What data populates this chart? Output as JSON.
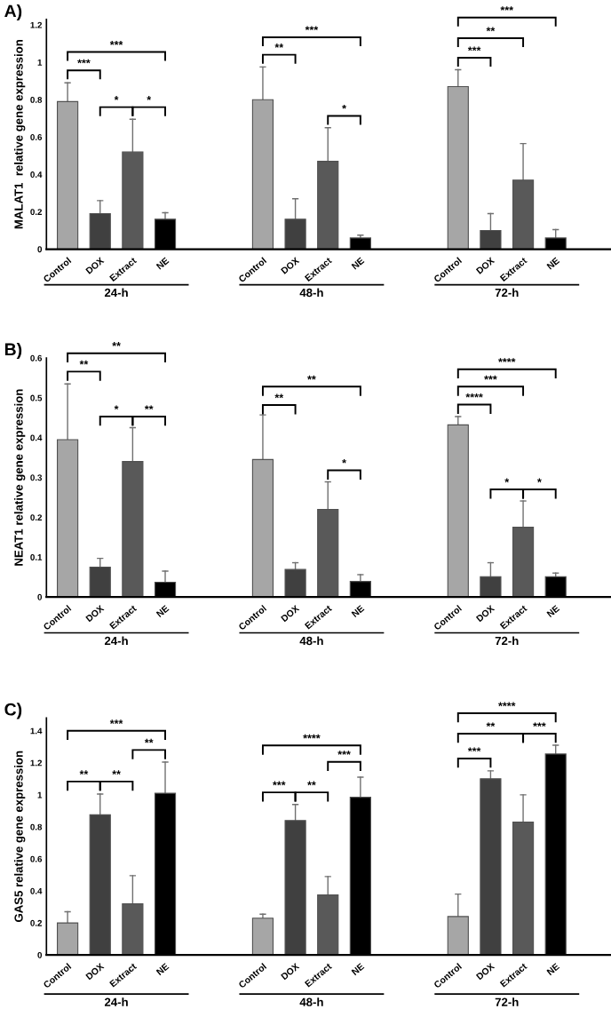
{
  "chart_data": [
    {
      "type": "bar",
      "title": "A)",
      "ylabel": "MALAT1  relative gene expression",
      "categories": [
        "Control",
        "DOX",
        "Extract",
        "NE",
        null,
        null,
        "Control",
        "DOX",
        "Extract",
        "NE",
        null,
        null,
        "Control",
        "DOX",
        "Extract",
        "NE"
      ],
      "values": [
        0.79,
        0.19,
        0.52,
        0.16,
        null,
        null,
        0.8,
        0.16,
        0.47,
        0.06,
        null,
        null,
        0.87,
        0.1,
        0.37,
        0.06
      ],
      "errors": [
        [
          0.79,
          0.89
        ],
        [
          0.19,
          0.26
        ],
        [
          0.52,
          0.695
        ],
        [
          0.16,
          0.195
        ],
        null,
        null,
        [
          0.8,
          0.975
        ],
        [
          0.16,
          0.27
        ],
        [
          0.47,
          0.65
        ],
        [
          0.06,
          0.075
        ],
        null,
        null,
        [
          0.87,
          0.96
        ],
        [
          0.1,
          0.19
        ],
        [
          0.37,
          0.565
        ],
        [
          0.06,
          0.105
        ]
      ],
      "colors": [
        "#a6a6a6",
        "#404040",
        "#595959",
        "#000000",
        null,
        null,
        "#a6a6a6",
        "#404040",
        "#595959",
        "#000000",
        null,
        null,
        "#a6a6a6",
        "#404040",
        "#595959",
        "#000000"
      ],
      "ylim": [
        0,
        1.23
      ],
      "yticks": [
        0,
        0.2,
        0.4,
        0.6,
        0.8,
        1,
        1.2
      ],
      "grid": false,
      "legend": false,
      "annotations": [
        "***",
        "***",
        "*",
        "*",
        "***",
        "**",
        "*",
        "***",
        "**",
        "***",
        "24-h",
        "48-h",
        "72-h"
      ]
    },
    {
      "type": "bar",
      "title": "B)",
      "ylabel": "NEAT1 relative gene expression",
      "categories": [
        "Control",
        "DOX",
        "Extract",
        "NE",
        null,
        null,
        "Control",
        "DOX",
        "Extract",
        "NE",
        null,
        null,
        "Control",
        "DOX",
        "Extract",
        "NE"
      ],
      "values": [
        0.395,
        0.075,
        0.34,
        0.037,
        null,
        null,
        0.345,
        0.069,
        0.22,
        0.039,
        null,
        null,
        0.432,
        0.051,
        0.175,
        0.051
      ],
      "errors": [
        [
          0.395,
          0.535
        ],
        [
          0.075,
          0.097
        ],
        [
          0.34,
          0.425
        ],
        [
          0.037,
          0.065
        ],
        null,
        null,
        [
          0.345,
          0.457
        ],
        [
          0.069,
          0.086
        ],
        [
          0.22,
          0.289
        ],
        [
          0.039,
          0.056
        ],
        null,
        null,
        [
          0.432,
          0.453
        ],
        [
          0.051,
          0.086
        ],
        [
          0.175,
          0.241
        ],
        [
          0.051,
          0.06
        ]
      ],
      "colors": [
        "#a6a6a6",
        "#404040",
        "#595959",
        "#000000",
        null,
        null,
        "#a6a6a6",
        "#404040",
        "#595959",
        "#000000",
        null,
        null,
        "#a6a6a6",
        "#404040",
        "#595959",
        "#000000"
      ],
      "ylim": [
        0,
        0.6
      ],
      "yticks": [
        0,
        0.1,
        0.2,
        0.3,
        0.4,
        0.5,
        0.6
      ],
      "grid": false,
      "legend": false,
      "annotations": [
        "**",
        "**",
        "*",
        "**",
        "**",
        "**",
        "*",
        "****",
        "***",
        "****",
        "*",
        "*",
        "24-h",
        "48-h",
        "72-h"
      ]
    },
    {
      "type": "bar",
      "title": "C)",
      "ylabel": "GAS5 relative gene expression",
      "categories": [
        "Control",
        "DOX",
        "Extract",
        "NE",
        null,
        null,
        "Control",
        "DOX",
        "Extract",
        "NE",
        null,
        null,
        "Control",
        "DOX",
        "Extract",
        "NE"
      ],
      "values": [
        0.2,
        0.875,
        0.32,
        1.01,
        null,
        null,
        0.23,
        0.84,
        0.375,
        0.985,
        null,
        null,
        0.24,
        1.1,
        0.83,
        1.255
      ],
      "errors": [
        [
          0.2,
          0.27
        ],
        [
          0.875,
          1.005
        ],
        [
          0.32,
          0.495
        ],
        [
          1.01,
          1.205
        ],
        null,
        null,
        [
          0.23,
          0.255
        ],
        [
          0.84,
          0.94
        ],
        [
          0.375,
          0.49
        ],
        [
          0.985,
          1.11
        ],
        null,
        null,
        [
          0.24,
          0.38
        ],
        [
          1.1,
          1.15
        ],
        [
          0.83,
          1.0
        ],
        [
          1.255,
          1.31
        ]
      ],
      "colors": [
        "#a6a6a6",
        "#404040",
        "#595959",
        "#000000",
        null,
        null,
        "#a6a6a6",
        "#404040",
        "#595959",
        "#000000",
        null,
        null,
        "#a6a6a6",
        "#404040",
        "#595959",
        "#000000"
      ],
      "ylim": [
        0,
        1.48
      ],
      "yticks": [
        0,
        0.2,
        0.4,
        0.6,
        0.8,
        1,
        1.2,
        1.4
      ],
      "grid": false,
      "legend": false,
      "annotations": [
        "***",
        "**",
        "**",
        "**",
        "****",
        "***",
        "***",
        "**",
        "****",
        "**",
        "***",
        "***",
        "24-h",
        "48-h",
        "72-h"
      ]
    }
  ]
}
